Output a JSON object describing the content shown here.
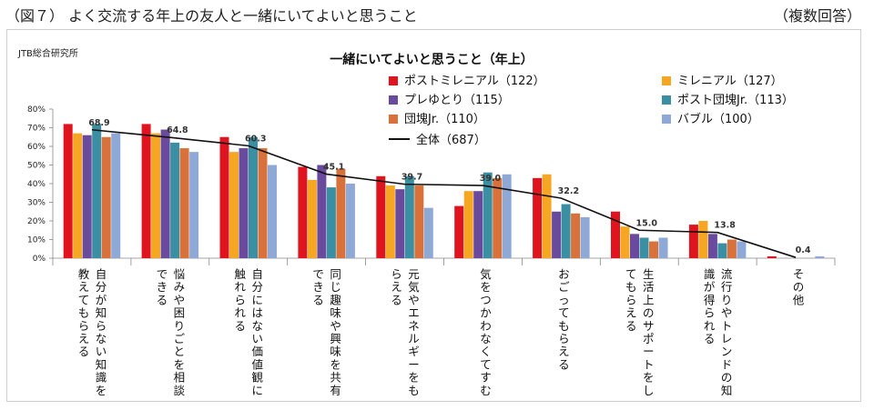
{
  "header": {
    "left": "（図７） よく交流する年上の友人と一緒にいてよいと思うこと",
    "right": "（複数回答）"
  },
  "source_label": "JTB総合研究所",
  "chart_data": {
    "type": "bar",
    "title": "一緒にいてよいと思うこと（年上）",
    "ylim": [
      0,
      80
    ],
    "yticks": [
      "0%",
      "10%",
      "20%",
      "30%",
      "40%",
      "50%",
      "60%",
      "70%",
      "80%"
    ],
    "categories": [
      [
        "自分が知らない知識を",
        "教えてもらえる"
      ],
      [
        "悩みや困りごとを相談",
        "できる"
      ],
      [
        "自分にはない価値観に",
        "触れられる"
      ],
      [
        "同じ趣味や興味を共有",
        "できる"
      ],
      [
        "元気やエネルギーをも",
        "らえる"
      ],
      [
        "気をつかわなくてすむ"
      ],
      [
        "おごってもらえる"
      ],
      [
        "生活上のサポートをし",
        "てもらえる"
      ],
      [
        "流行りやトレンドの知",
        "識が得られる"
      ],
      [
        "その他"
      ]
    ],
    "series": [
      {
        "name": "ポストミレニアル（122）",
        "color": "#e0141e",
        "values": [
          72,
          72,
          65,
          49,
          44,
          28,
          43,
          25,
          18,
          1
        ]
      },
      {
        "name": "ミレニアル（127）",
        "color": "#f5a623",
        "values": [
          67,
          67,
          57,
          42,
          39,
          36,
          45,
          17,
          20,
          0
        ]
      },
      {
        "name": "プレゆとり（115）",
        "color": "#6a4a9c",
        "values": [
          66,
          69,
          59,
          50,
          37,
          36,
          25,
          13,
          13,
          0
        ]
      },
      {
        "name": "ポスト団塊Jr.（113）",
        "color": "#3a8fa3",
        "values": [
          72,
          62,
          65,
          38,
          44,
          46,
          29,
          11,
          8,
          0
        ]
      },
      {
        "name": "団塊Jr.（110）",
        "color": "#d9713a",
        "values": [
          65,
          59,
          59,
          48,
          39,
          43,
          24,
          9,
          10,
          0
        ]
      },
      {
        "name": "バブル（100）",
        "color": "#8fa9d6",
        "values": [
          67,
          57,
          50,
          40,
          27,
          45,
          22,
          11,
          9,
          1
        ]
      }
    ],
    "total": {
      "name": "全体（687）",
      "color": "#111111",
      "values": [
        68.9,
        64.8,
        60.3,
        45.1,
        39.7,
        39.0,
        32.2,
        15.0,
        13.8,
        0.4
      ]
    }
  }
}
